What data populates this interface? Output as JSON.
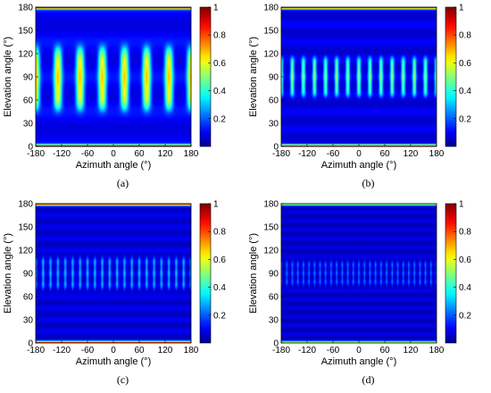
{
  "colormap": {
    "name": "jet",
    "stops": [
      "#00008f",
      "#0000ff",
      "#00ffff",
      "#ffff00",
      "#ff0000",
      "#800000"
    ]
  },
  "chart_data": [
    {
      "type": "heatmap",
      "caption": "(a)",
      "xlabel": "Azimuth angle (°)",
      "ylabel": "Elevation angle (°)",
      "xlim": [
        -180,
        180
      ],
      "ylim": [
        0,
        180
      ],
      "xticks": [
        "-180",
        "-120",
        "-60",
        "0",
        "60",
        "120",
        "180"
      ],
      "yticks": [
        "0",
        "30",
        "60",
        "90",
        "120",
        "150",
        "180"
      ],
      "colorbar": {
        "min": 0,
        "max": 1,
        "ticks": [
          "0.2",
          "0.4",
          "0.6",
          "0.8",
          "1"
        ]
      },
      "pattern": {
        "azimuth_lobes": 7,
        "lobe_elevation_range": [
          48,
          128
        ],
        "lobe_peak": 0.55,
        "edge_value": 0.9,
        "background": 0.08,
        "elevation_ripples": 4
      }
    },
    {
      "type": "heatmap",
      "caption": "(b)",
      "xlabel": "Azimuth angle (°)",
      "ylabel": "Elevation angle (°)",
      "xlim": [
        -180,
        180
      ],
      "ylim": [
        0,
        180
      ],
      "xticks": [
        "-180",
        "-120",
        "-60",
        "0",
        "60",
        "120",
        "180"
      ],
      "yticks": [
        "0",
        "30",
        "60",
        "90",
        "120",
        "150",
        "180"
      ],
      "colorbar": {
        "min": 0,
        "max": 1,
        "ticks": [
          "0.2",
          "0.4",
          "0.6",
          "0.8",
          "1"
        ]
      },
      "pattern": {
        "azimuth_lobes": 14,
        "lobe_elevation_range": [
          65,
          115
        ],
        "lobe_peak": 0.4,
        "edge_value": 0.85,
        "background": 0.06,
        "elevation_ripples": 8
      }
    },
    {
      "type": "heatmap",
      "caption": "(c)",
      "xlabel": "Azimuth angle (°)",
      "ylabel": "Elevation angle (°)",
      "xlim": [
        -180,
        180
      ],
      "ylim": [
        0,
        180
      ],
      "xticks": [
        "-180",
        "-120",
        "-60",
        "0",
        "60",
        "120",
        "180"
      ],
      "yticks": [
        "0",
        "30",
        "60",
        "90",
        "120",
        "150",
        "180"
      ],
      "colorbar": {
        "min": 0,
        "max": 1,
        "ticks": [
          "0.2",
          "0.4",
          "0.6",
          "0.8",
          "1"
        ]
      },
      "pattern": {
        "azimuth_lobes": 21,
        "lobe_elevation_range": [
          68,
          112
        ],
        "lobe_peak": 0.22,
        "edge_value": 0.8,
        "background": 0.05,
        "elevation_ripples": 12
      }
    },
    {
      "type": "heatmap",
      "caption": "(d)",
      "xlabel": "Azimuth angle (°)",
      "ylabel": "Elevation angle (°)",
      "xlim": [
        -180,
        180
      ],
      "ylim": [
        0,
        180
      ],
      "xticks": [
        "-180",
        "-120",
        "-60",
        "0",
        "60",
        "120",
        "180"
      ],
      "yticks": [
        "0",
        "30",
        "60",
        "90",
        "120",
        "150",
        "180"
      ],
      "colorbar": {
        "min": 0,
        "max": 1,
        "ticks": [
          "0.2",
          "0.4",
          "0.6",
          "0.8",
          "1"
        ]
      },
      "pattern": {
        "azimuth_lobes": 28,
        "lobe_elevation_range": [
          72,
          108
        ],
        "lobe_peak": 0.16,
        "edge_value": 0.5,
        "background": 0.04,
        "elevation_ripples": 16
      }
    }
  ]
}
